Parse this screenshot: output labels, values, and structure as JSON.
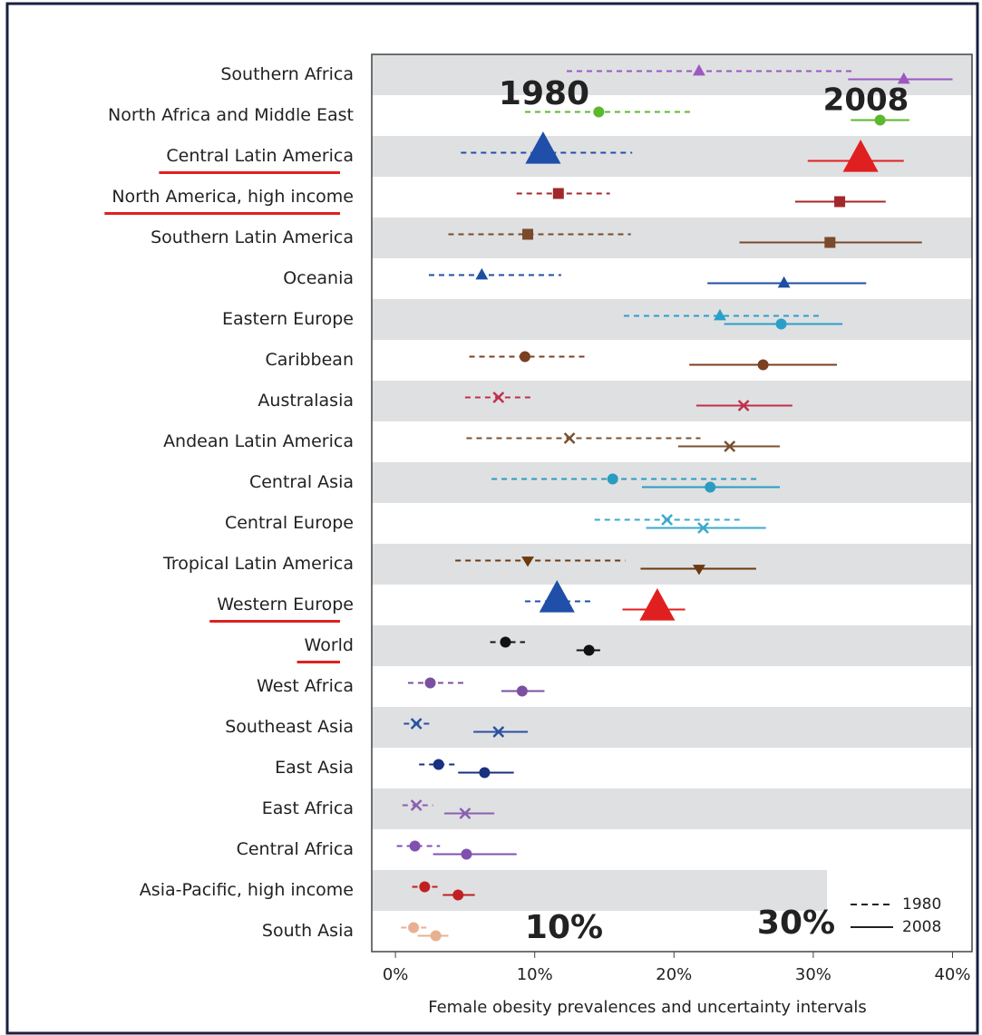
{
  "chart_data": {
    "type": "dot-interval",
    "categories": [
      "Southern Africa",
      "North Africa and Middle East",
      "Central Latin America",
      "North America, high income",
      "Southern Latin America",
      "Oceania",
      "Eastern Europe",
      "Caribbean",
      "Australasia",
      "Andean Latin America",
      "Central Asia",
      "Central Europe",
      "Tropical Latin America",
      "Western Europe",
      "World",
      "West Africa",
      "Southeast Asia",
      "East Asia",
      "East Africa",
      "Central Africa",
      "Asia-Pacific, high income",
      "South Asia"
    ],
    "underlined": [
      2,
      3,
      13,
      14
    ],
    "highlighted": [
      2,
      13
    ],
    "markers": [
      "triangle",
      "circle",
      "triangle",
      "square",
      "square",
      "triangle",
      [
        "triangle",
        "circle"
      ],
      "circle",
      "x",
      "x",
      "circle",
      "x",
      "triangle-down",
      "triangle",
      "circle",
      "circle",
      "x",
      "circle",
      "x",
      "circle",
      "circle",
      "circle"
    ],
    "series": [
      {
        "name": "1980",
        "dash": true,
        "values": [
          21.8,
          14.6,
          10.6,
          11.7,
          9.5,
          6.2,
          23.3,
          9.3,
          7.4,
          12.5,
          15.6,
          19.5,
          9.5,
          11.6,
          7.9,
          2.5,
          1.5,
          3.1,
          1.5,
          1.4,
          2.1,
          1.3
        ],
        "lower": [
          12.3,
          9.3,
          4.7,
          8.7,
          3.8,
          2.4,
          16.4,
          5.3,
          5.0,
          5.1,
          6.9,
          14.3,
          4.3,
          9.3,
          6.8,
          0.9,
          0.6,
          1.7,
          0.5,
          0.1,
          1.2,
          0.4
        ],
        "upper": [
          32.8,
          21.2,
          17.0,
          15.4,
          16.9,
          11.9,
          30.6,
          13.9,
          10.0,
          21.9,
          26.1,
          24.9,
          16.5,
          14.3,
          9.3,
          5.0,
          2.7,
          4.5,
          2.7,
          3.2,
          3.3,
          2.3
        ],
        "colors": [
          "#9b59c0",
          "#5cb82e",
          "#1f4fa8",
          "#a3282a",
          "#7a4a2a",
          "#1f4fa0",
          "#2aa0c8",
          "#7a4020",
          "#c0304a",
          "#7a5030",
          "#2a9cc0",
          "#3aaac8",
          "#6a3a10",
          "#1f4fa8",
          "#111111",
          "#7a50a0",
          "#2a50a0",
          "#1a3080",
          "#8a60b0",
          "#8050b0",
          "#c02020",
          "#e8b090"
        ]
      },
      {
        "name": "2008",
        "dash": false,
        "values": [
          36.5,
          34.8,
          33.4,
          31.9,
          31.2,
          27.9,
          27.7,
          26.4,
          25.0,
          24.0,
          22.6,
          22.1,
          21.8,
          18.8,
          13.9,
          9.1,
          7.4,
          6.4,
          5.0,
          5.1,
          4.5,
          2.9
        ],
        "lower": [
          32.5,
          32.7,
          29.6,
          28.7,
          24.7,
          22.4,
          23.6,
          21.1,
          21.6,
          20.3,
          17.7,
          18.0,
          17.6,
          16.3,
          13.0,
          7.6,
          5.6,
          4.5,
          3.5,
          2.7,
          3.4,
          1.6
        ],
        "upper": [
          40.0,
          36.9,
          36.5,
          35.2,
          37.8,
          33.8,
          32.1,
          31.7,
          28.5,
          27.6,
          27.6,
          26.6,
          25.9,
          20.8,
          14.7,
          10.7,
          9.5,
          8.5,
          7.1,
          8.7,
          5.7,
          3.8
        ],
        "colors": [
          "#9b59c0",
          "#5cb82e",
          "#e02020",
          "#a3282a",
          "#7a4a2a",
          "#1f4fa0",
          "#2aa0c8",
          "#7a4020",
          "#c0304a",
          "#7a5030",
          "#2a9cc0",
          "#3aaac8",
          "#6a3a10",
          "#e02020",
          "#111111",
          "#7a50a0",
          "#2a50a0",
          "#1a3080",
          "#8a60b0",
          "#8050b0",
          "#c02020",
          "#e8b090"
        ]
      }
    ],
    "xlim": [
      -1.7,
      41.4
    ],
    "xticks": [
      {
        "value": 0,
        "label": "0%"
      },
      {
        "value": 10,
        "label": "10%"
      },
      {
        "value": 20,
        "label": "20%"
      },
      {
        "value": 30,
        "label": "30%"
      },
      {
        "value": 40,
        "label": "40%"
      }
    ],
    "x_label": "Female obesity prevalences and uncertainty intervals",
    "annotations": [
      {
        "text": "1980",
        "color": "#1f2f80"
      },
      {
        "text": "2008",
        "color": "#e02020"
      },
      {
        "text": "10%",
        "color": "#e02020"
      },
      {
        "text": "30%",
        "color": "#e02020"
      }
    ],
    "underline_color": "#e02020"
  }
}
